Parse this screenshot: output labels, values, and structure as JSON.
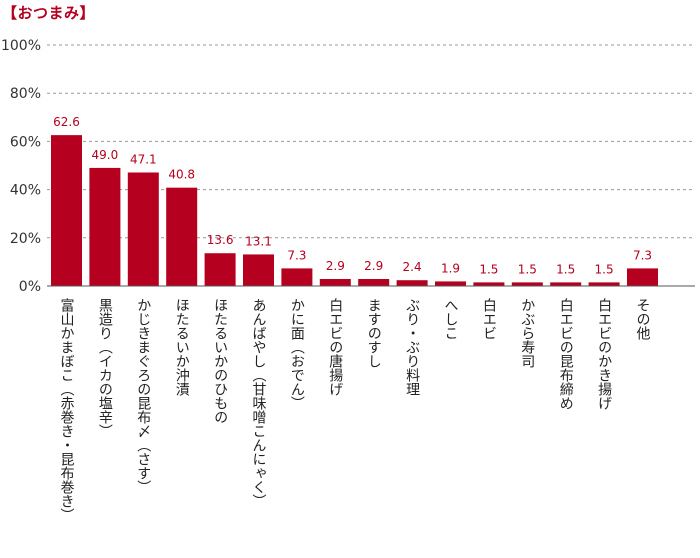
{
  "chart_data": {
    "type": "bar",
    "title": "【おつまみ】",
    "xlabel": "",
    "ylabel": "",
    "ylim": [
      0,
      100
    ],
    "y_ticks": [
      "0%",
      "20%",
      "40%",
      "60%",
      "80%",
      "100%"
    ],
    "y_tick_values": [
      0,
      20,
      40,
      60,
      80,
      100
    ],
    "grid": true,
    "categories": [
      "富山かまぼこ（赤巻き・昆布巻き）",
      "黒造り（イカの塩辛）",
      "かじきまぐろの昆布〆（さす）",
      "ほたるいか沖漬",
      "ほたるいかのひもの",
      "あんばやし（甘味噌こんにゃく）",
      "かに面（おでん）",
      "白エビの唐揚げ",
      "ますのすし",
      "ぶり・ぶり料理",
      "へしこ",
      "白エビ",
      "かぶら寿司",
      "白エビの昆布締め",
      "白エビのかき揚げ",
      "その他"
    ],
    "values": [
      62.6,
      49.0,
      47.1,
      40.8,
      13.6,
      13.1,
      7.3,
      2.9,
      2.9,
      2.4,
      1.9,
      1.5,
      1.5,
      1.5,
      1.5,
      7.3
    ],
    "value_labels": [
      "62.6",
      "49.0",
      "47.1",
      "40.8",
      "13.6",
      "13.1",
      "7.3",
      "2.9",
      "2.9",
      "2.4",
      "1.9",
      "1.5",
      "1.5",
      "1.5",
      "1.5",
      "7.3"
    ],
    "colors": {
      "bar": "#b5001f",
      "label": "#b5001f",
      "grid": "#999999",
      "axis": "#555555"
    }
  }
}
